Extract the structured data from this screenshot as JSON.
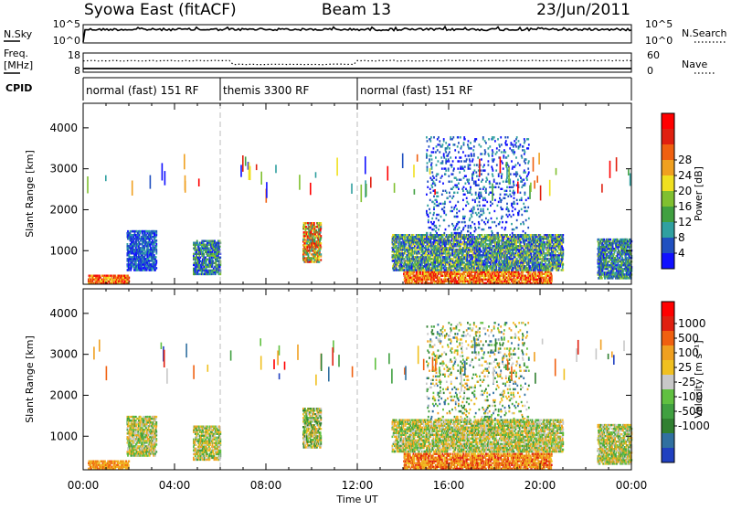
{
  "header": {
    "station": "Syowa East (fitACF)",
    "beam": "Beam 13",
    "date": "23/Jun/2011"
  },
  "left_labels": {
    "nsky": "N.Sky",
    "freq_line1": "Freq.",
    "freq_line2": "[MHz]",
    "cpid": "CPID"
  },
  "right_labels": {
    "nsearch": "N.Search",
    "nave": "Nave"
  },
  "nsky_panel": {
    "left_ticks": [
      "10^5",
      "10^0"
    ],
    "right_ticks": [
      "10^5",
      "10^0"
    ]
  },
  "freq_panel": {
    "left_ticks": [
      "18",
      "8"
    ],
    "right_ticks": [
      "60",
      "0"
    ]
  },
  "cpid_segments": [
    {
      "label": "normal (fast) 151 RF",
      "start_hour": 0,
      "end_hour": 6
    },
    {
      "label": "themis 3300 RF",
      "start_hour": 6,
      "end_hour": 12
    },
    {
      "label": "normal (fast) 151 RF",
      "start_hour": 12,
      "end_hour": 24
    }
  ],
  "chart_data": [
    {
      "type": "heatmap",
      "panel": "power",
      "ylabel": "Slant Range [km]",
      "xlabel": "Time UT",
      "x_ticks": [
        "00:00",
        "04:00",
        "08:00",
        "12:00",
        "16:00",
        "20:00",
        "00:00"
      ],
      "x_range_hours": [
        0,
        24
      ],
      "ylim": [
        180,
        4600
      ],
      "y_ticks": [
        1000,
        2000,
        3000,
        4000
      ],
      "colorbar": {
        "label": "Power [dB]",
        "ticks": [
          "4",
          "8",
          "12",
          "16",
          "20",
          "24",
          "28"
        ],
        "colors": [
          "#1010ff",
          "#2050c0",
          "#30a0a0",
          "#40a040",
          "#80c030",
          "#f0e020",
          "#f0a020",
          "#f06010",
          "#e02010",
          "#ff0000"
        ]
      },
      "scatter_regions": [
        {
          "t0": 0.2,
          "t1": 2.0,
          "r0": 180,
          "r1": 420,
          "level_min": 5,
          "level_max": 9
        },
        {
          "t0": 1.9,
          "t1": 3.2,
          "r0": 500,
          "r1": 1500,
          "level_min": 0,
          "level_max": 2
        },
        {
          "t0": 4.8,
          "t1": 6.0,
          "r0": 400,
          "r1": 1250,
          "level_min": 0,
          "level_max": 4
        },
        {
          "t0": 9.6,
          "t1": 10.4,
          "r0": 700,
          "r1": 1700,
          "level_min": 2,
          "level_max": 9
        },
        {
          "t0": 14.0,
          "t1": 20.5,
          "r0": 180,
          "r1": 500,
          "level_min": 5,
          "level_max": 9
        },
        {
          "t0": 13.5,
          "t1": 21.0,
          "r0": 500,
          "r1": 1400,
          "level_min": 0,
          "level_max": 5
        },
        {
          "t0": 15.0,
          "t1": 19.5,
          "r0": 1400,
          "r1": 3800,
          "level_min": 0,
          "level_max": 2
        },
        {
          "t0": 22.5,
          "t1": 24.0,
          "r0": 300,
          "r1": 1300,
          "level_min": 0,
          "level_max": 4
        }
      ]
    },
    {
      "type": "heatmap",
      "panel": "velocity",
      "ylabel": "Slant Range [km]",
      "xlabel": "Time UT",
      "x_ticks": [
        "00:00",
        "04:00",
        "08:00",
        "12:00",
        "16:00",
        "20:00",
        "00:00"
      ],
      "x_range_hours": [
        0,
        24
      ],
      "ylim": [
        180,
        4600
      ],
      "y_ticks": [
        1000,
        2000,
        3000,
        4000
      ],
      "colorbar": {
        "label": "Velocity [m s⁻¹]",
        "ticks": [
          "1000",
          "500",
          "100",
          "25",
          "-25",
          "-100",
          "-500",
          "-1000"
        ],
        "colors": [
          "#2040c0",
          "#3070a0",
          "#308030",
          "#40a040",
          "#60c040",
          "#c8c8c8",
          "#f0c020",
          "#f0a020",
          "#f06010",
          "#e02010",
          "#ff0000"
        ]
      },
      "scatter_regions": [
        {
          "t0": 0.2,
          "t1": 2.0,
          "r0": 180,
          "r1": 420,
          "level_min": 6,
          "level_max": 8
        },
        {
          "t0": 1.9,
          "t1": 3.2,
          "r0": 500,
          "r1": 1500,
          "level_min": 3,
          "level_max": 7
        },
        {
          "t0": 4.8,
          "t1": 6.0,
          "r0": 400,
          "r1": 1250,
          "level_min": 3,
          "level_max": 7
        },
        {
          "t0": 9.6,
          "t1": 10.4,
          "r0": 700,
          "r1": 1700,
          "level_min": 2,
          "level_max": 7
        },
        {
          "t0": 14.0,
          "t1": 20.5,
          "r0": 180,
          "r1": 600,
          "level_min": 6,
          "level_max": 9
        },
        {
          "t0": 13.5,
          "t1": 21.0,
          "r0": 600,
          "r1": 1400,
          "level_min": 3,
          "level_max": 7
        },
        {
          "t0": 15.0,
          "t1": 19.5,
          "r0": 1400,
          "r1": 3800,
          "level_min": 1,
          "level_max": 7
        },
        {
          "t0": 22.5,
          "t1": 24.0,
          "r0": 300,
          "r1": 1300,
          "level_min": 3,
          "level_max": 7
        }
      ]
    }
  ]
}
